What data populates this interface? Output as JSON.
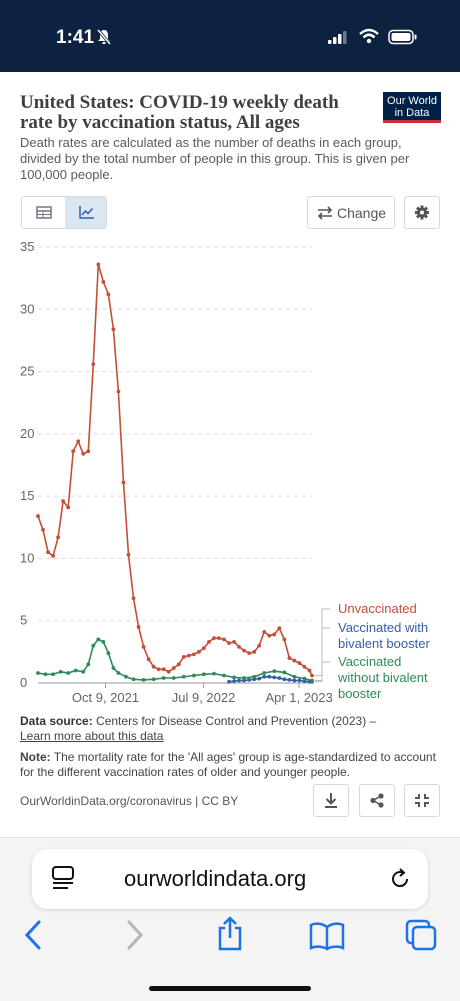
{
  "status_bar": {
    "time": "1:41"
  },
  "header": {
    "title": "United States: COVID-19 weekly death rate by vaccination status, All ages",
    "subtitle": "Death rates are calculated as the number of deaths in each group, divided by the total number of people in this group. This is given per 100,000 people.",
    "logo_line1": "Our World",
    "logo_line2": "in Data"
  },
  "toolbar": {
    "change_label": "Change"
  },
  "chart_data": {
    "type": "line",
    "title": "United States: COVID-19 weekly death rate by vaccination status, All ages",
    "xlabel": "",
    "ylabel": "",
    "ylim": [
      0,
      35
    ],
    "yticks": [
      0,
      5,
      10,
      15,
      20,
      25,
      30,
      35
    ],
    "xticks": [
      "Oct 9, 2021",
      "Jul 9, 2022",
      "Apr 1, 2023"
    ],
    "x_range": [
      "2021-04-04",
      "2023-05-07"
    ],
    "grid": true,
    "legend_placement": "right",
    "series": [
      {
        "name": "Unvaccinated",
        "color": "#c44e36",
        "points": [
          [
            "2021-04-04",
            13.4
          ],
          [
            "2021-04-18",
            12.3
          ],
          [
            "2021-05-02",
            10.5
          ],
          [
            "2021-05-16",
            10.2
          ],
          [
            "2021-05-30",
            11.7
          ],
          [
            "2021-06-13",
            14.6
          ],
          [
            "2021-06-27",
            14.1
          ],
          [
            "2021-07-11",
            18.6
          ],
          [
            "2021-07-25",
            19.4
          ],
          [
            "2021-08-08",
            18.4
          ],
          [
            "2021-08-22",
            18.6
          ],
          [
            "2021-09-05",
            25.6
          ],
          [
            "2021-09-19",
            33.6
          ],
          [
            "2021-10-03",
            32.2
          ],
          [
            "2021-10-17",
            31.2
          ],
          [
            "2021-10-31",
            28.4
          ],
          [
            "2021-11-14",
            23.4
          ],
          [
            "2021-11-28",
            16.1
          ],
          [
            "2021-12-12",
            10.3
          ],
          [
            "2021-12-26",
            6.8
          ],
          [
            "2022-01-09",
            4.5
          ],
          [
            "2022-01-23",
            2.9
          ],
          [
            "2022-02-06",
            1.9
          ],
          [
            "2022-02-20",
            1.3
          ],
          [
            "2022-03-06",
            1.1
          ],
          [
            "2022-03-20",
            1.1
          ],
          [
            "2022-04-03",
            0.9
          ],
          [
            "2022-04-17",
            1.2
          ],
          [
            "2022-05-01",
            1.5
          ],
          [
            "2022-05-15",
            2.1
          ],
          [
            "2022-05-29",
            2.2
          ],
          [
            "2022-06-12",
            2.3
          ],
          [
            "2022-06-26",
            2.5
          ],
          [
            "2022-07-10",
            2.8
          ],
          [
            "2022-07-24",
            3.3
          ],
          [
            "2022-08-07",
            3.6
          ],
          [
            "2022-08-21",
            3.6
          ],
          [
            "2022-09-04",
            3.5
          ],
          [
            "2022-09-18",
            3.2
          ],
          [
            "2022-10-02",
            3.3
          ],
          [
            "2022-10-16",
            2.9
          ],
          [
            "2022-10-30",
            2.6
          ],
          [
            "2022-11-13",
            2.4
          ],
          [
            "2022-11-27",
            2.5
          ],
          [
            "2022-12-11",
            3.0
          ],
          [
            "2022-12-25",
            4.1
          ],
          [
            "2023-01-08",
            3.8
          ],
          [
            "2023-01-22",
            3.9
          ],
          [
            "2023-02-05",
            4.4
          ],
          [
            "2023-02-19",
            3.5
          ],
          [
            "2023-03-05",
            2.0
          ],
          [
            "2023-03-19",
            1.8
          ],
          [
            "2023-04-02",
            1.6
          ],
          [
            "2023-04-16",
            1.3
          ],
          [
            "2023-04-30",
            1.0
          ],
          [
            "2023-05-07",
            0.6
          ]
        ]
      },
      {
        "name": "Vaccinated with bivalent booster",
        "color": "#3360a9",
        "points": [
          [
            "2022-09-18",
            0.1
          ],
          [
            "2022-10-02",
            0.15
          ],
          [
            "2022-10-16",
            0.2
          ],
          [
            "2022-10-30",
            0.2
          ],
          [
            "2022-11-13",
            0.25
          ],
          [
            "2022-11-27",
            0.3
          ],
          [
            "2022-12-11",
            0.35
          ],
          [
            "2022-12-25",
            0.5
          ],
          [
            "2023-01-08",
            0.5
          ],
          [
            "2023-01-22",
            0.45
          ],
          [
            "2023-02-05",
            0.4
          ],
          [
            "2023-02-19",
            0.3
          ],
          [
            "2023-03-05",
            0.25
          ],
          [
            "2023-03-19",
            0.2
          ],
          [
            "2023-04-02",
            0.2
          ],
          [
            "2023-04-16",
            0.15
          ],
          [
            "2023-04-30",
            0.1
          ],
          [
            "2023-05-07",
            0.1
          ]
        ]
      },
      {
        "name": "Vaccinated without bivalent booster",
        "color": "#2e8b57",
        "points": [
          [
            "2021-04-04",
            0.8
          ],
          [
            "2021-04-25",
            0.7
          ],
          [
            "2021-05-16",
            0.7
          ],
          [
            "2021-06-06",
            0.9
          ],
          [
            "2021-06-27",
            0.8
          ],
          [
            "2021-07-18",
            1.0
          ],
          [
            "2021-08-08",
            0.9
          ],
          [
            "2021-08-22",
            1.5
          ],
          [
            "2021-09-05",
            3.0
          ],
          [
            "2021-09-19",
            3.5
          ],
          [
            "2021-10-03",
            3.3
          ],
          [
            "2021-10-17",
            2.4
          ],
          [
            "2021-10-31",
            1.2
          ],
          [
            "2021-11-14",
            0.8
          ],
          [
            "2021-12-05",
            0.5
          ],
          [
            "2021-12-26",
            0.3
          ],
          [
            "2022-01-23",
            0.25
          ],
          [
            "2022-02-20",
            0.3
          ],
          [
            "2022-03-20",
            0.4
          ],
          [
            "2022-04-17",
            0.4
          ],
          [
            "2022-05-15",
            0.5
          ],
          [
            "2022-06-12",
            0.6
          ],
          [
            "2022-07-10",
            0.7
          ],
          [
            "2022-08-07",
            0.75
          ],
          [
            "2022-09-04",
            0.6
          ],
          [
            "2022-10-02",
            0.45
          ],
          [
            "2022-10-30",
            0.4
          ],
          [
            "2022-11-27",
            0.5
          ],
          [
            "2022-12-25",
            0.8
          ],
          [
            "2023-01-22",
            0.95
          ],
          [
            "2023-02-19",
            0.85
          ],
          [
            "2023-03-19",
            0.5
          ],
          [
            "2023-04-16",
            0.35
          ],
          [
            "2023-05-07",
            0.2
          ]
        ]
      }
    ],
    "legend": [
      {
        "label_lines": [
          "Unvaccinated"
        ],
        "color": "#c44e36"
      },
      {
        "label_lines": [
          "Vaccinated with",
          "bivalent booster"
        ],
        "color": "#3360a9"
      },
      {
        "label_lines": [
          "Vaccinated",
          "without bivalent",
          "booster"
        ],
        "color": "#2e8b57"
      }
    ]
  },
  "footer": {
    "source_label": "Data source:",
    "source_text": "Centers for Disease Control and Prevention (2023) –",
    "source_link": "Learn more about this data",
    "note_label": "Note:",
    "note_text": "The mortality rate for the 'All ages' group is age-standardized to account for the different vaccination rates of older and younger people.",
    "url": "OurWorldinData.org/coronavirus | CC BY"
  },
  "browser": {
    "url": "ourworldindata.org"
  },
  "icons": {
    "bell": "bell-slash-icon",
    "signal": "signal-icon",
    "wifi": "wifi-icon",
    "battery": "battery-icon",
    "table": "table-icon",
    "chart": "line-chart-icon",
    "change": "swap-icon",
    "settings": "gear-icon",
    "download": "download-icon",
    "share": "share-icon",
    "fullscreen": "fullscreen-icon",
    "reader": "reader-icon",
    "reload": "reload-icon",
    "back": "back-arrow-icon",
    "forward": "forward-arrow-icon",
    "share_sheet": "share-sheet-icon",
    "bookmarks": "bookmarks-icon",
    "tabs": "tabs-icon"
  }
}
